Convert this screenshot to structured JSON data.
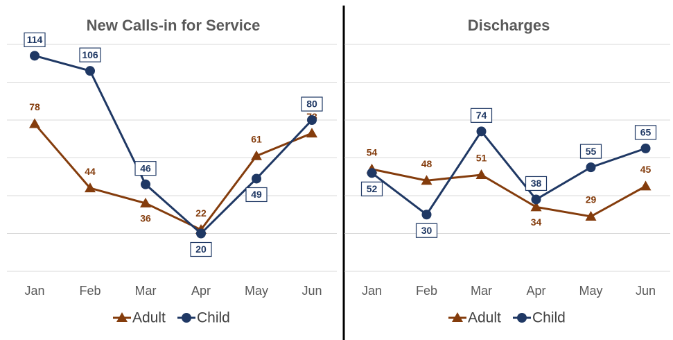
{
  "chart_data": [
    {
      "type": "line",
      "title": "New Calls-in for Service",
      "categories": [
        "Jan",
        "Feb",
        "Mar",
        "Apr",
        "May",
        "Jun"
      ],
      "series": [
        {
          "name": "Adult",
          "color": "#843c0c",
          "marker": "triangle",
          "values": [
            78,
            44,
            36,
            22,
            61,
            73
          ]
        },
        {
          "name": "Child",
          "color": "#1f3864",
          "marker": "circle",
          "values": [
            114,
            106,
            46,
            20,
            49,
            80
          ]
        }
      ],
      "ylim": [
        0,
        120
      ],
      "yticks": [
        0,
        20,
        40,
        60,
        80,
        100,
        120
      ],
      "grid": true,
      "legend": "bottom"
    },
    {
      "type": "line",
      "title": "Discharges",
      "categories": [
        "Jan",
        "Feb",
        "Mar",
        "Apr",
        "May",
        "Jun"
      ],
      "series": [
        {
          "name": "Adult",
          "color": "#843c0c",
          "marker": "triangle",
          "values": [
            54,
            48,
            51,
            34,
            29,
            45
          ]
        },
        {
          "name": "Child",
          "color": "#1f3864",
          "marker": "circle",
          "values": [
            52,
            30,
            74,
            38,
            55,
            65
          ]
        }
      ],
      "ylim": [
        0,
        120
      ],
      "yticks": [
        0,
        20,
        40,
        60,
        80,
        100,
        120
      ],
      "grid": true,
      "legend": "bottom"
    }
  ]
}
